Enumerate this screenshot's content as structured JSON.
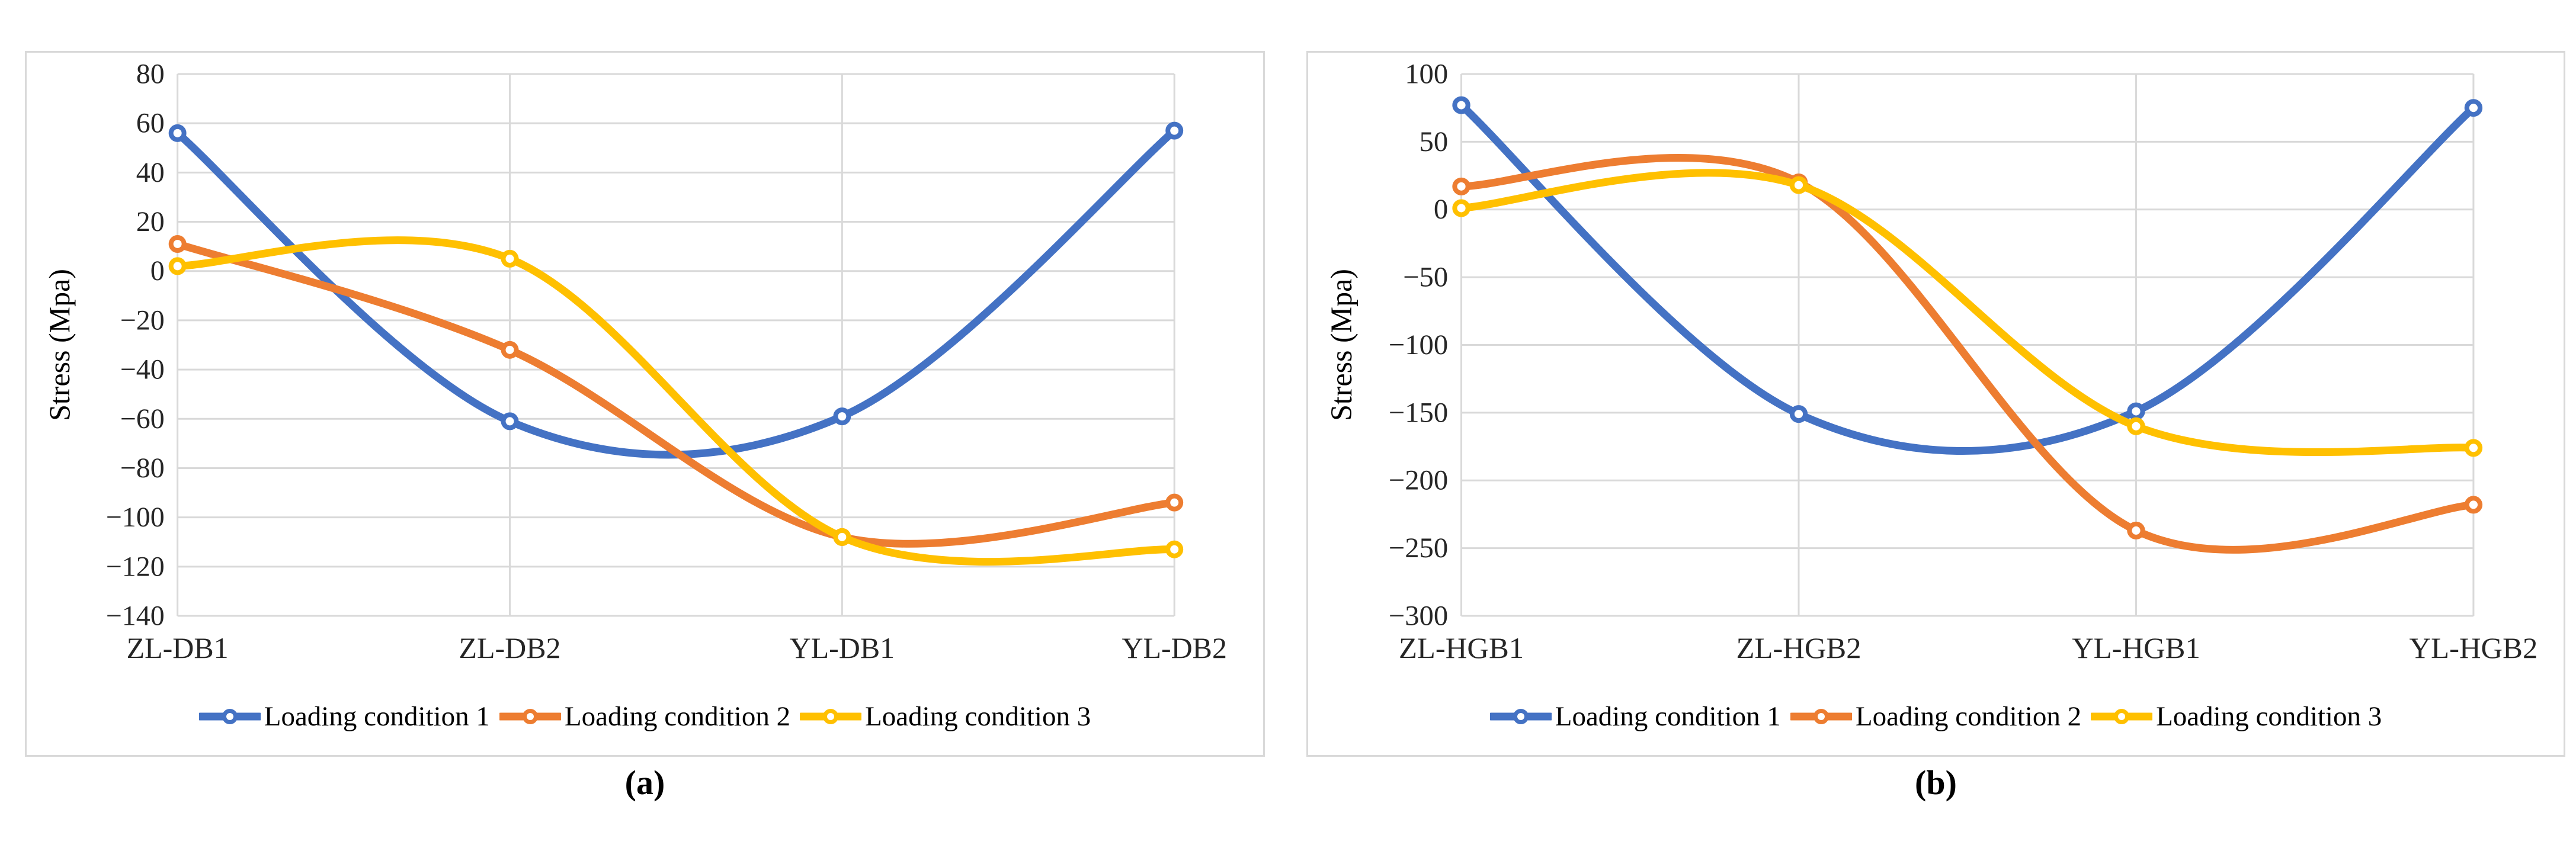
{
  "chart_data": [
    {
      "type": "line",
      "panel": "a",
      "caption": "(a)",
      "title": "",
      "xlabel": "",
      "ylabel": "Stress (Mpa)",
      "categories": [
        "ZL-DB1",
        "ZL-DB2",
        "YL-DB1",
        "YL-DB2"
      ],
      "ylim": [
        -140,
        80
      ],
      "ytick_step": 20,
      "yticks": [
        80,
        60,
        40,
        20,
        0,
        -20,
        -40,
        -60,
        -80,
        -100,
        -120,
        -140
      ],
      "grid": true,
      "smooth": true,
      "legend_position": "bottom",
      "series": [
        {
          "name": "Loading condition 1",
          "color": "#4472C4",
          "values": [
            56,
            -61,
            -59,
            57
          ]
        },
        {
          "name": "Loading condition 2",
          "color": "#ED7D31",
          "values": [
            11,
            -32,
            -108,
            -94
          ]
        },
        {
          "name": "Loading condition 3",
          "color": "#FFC000",
          "values": [
            2,
            5,
            -108,
            -113
          ]
        }
      ]
    },
    {
      "type": "line",
      "panel": "b",
      "caption": "(b)",
      "title": "",
      "xlabel": "",
      "ylabel": "Stress (Mpa)",
      "categories": [
        "ZL-HGB1",
        "ZL-HGB2",
        "YL-HGB1",
        "YL-HGB2"
      ],
      "ylim": [
        -300,
        100
      ],
      "ytick_step": 50,
      "yticks": [
        100,
        50,
        0,
        -50,
        -100,
        -150,
        -200,
        -250,
        -300
      ],
      "grid": true,
      "smooth": true,
      "legend_position": "bottom",
      "series": [
        {
          "name": "Loading condition 1",
          "color": "#4472C4",
          "values": [
            77,
            -151,
            -149,
            75
          ]
        },
        {
          "name": "Loading condition 2",
          "color": "#ED7D31",
          "values": [
            17,
            20,
            -237,
            -218
          ]
        },
        {
          "name": "Loading condition 3",
          "color": "#FFC000",
          "values": [
            1,
            18,
            -160,
            -176
          ]
        }
      ]
    }
  ],
  "styles": {
    "background": "#FFFFFF",
    "panel_border": "#D9D9D9",
    "gridline_color": "#D9D9D9",
    "tick_color": "#262626",
    "text_color": "#000000",
    "marker_fill": "#FFFFFF"
  }
}
